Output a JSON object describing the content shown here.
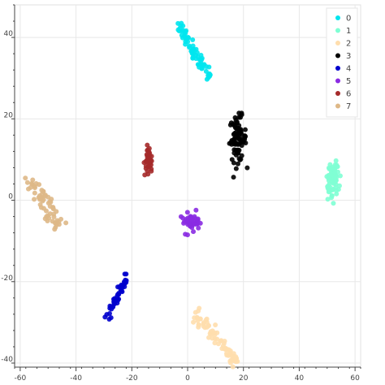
{
  "chart_data": {
    "type": "scatter",
    "title": "",
    "xlabel": "",
    "ylabel": "",
    "xlim": [
      -62,
      62
    ],
    "ylim": [
      -41,
      48
    ],
    "xticks": [
      -60,
      -40,
      -20,
      0,
      20,
      40,
      60
    ],
    "yticks": [
      -40,
      -20,
      0,
      20,
      40
    ],
    "xtick_labels": [
      "-60",
      "-40",
      "-20",
      "0",
      "20",
      "40",
      "60"
    ],
    "ytick_labels": [
      "-40",
      "-20",
      "0",
      "20",
      "40"
    ],
    "grid": true,
    "legend_position": "top-right",
    "series": [
      {
        "name": "0",
        "color": "#00e5ee",
        "shape": "line-cluster",
        "from": [
          -4,
          44
        ],
        "to": [
          8,
          30
        ],
        "spread": 0.8,
        "n": 70
      },
      {
        "name": "1",
        "color": "#7fffd4",
        "shape": "ellipse",
        "center": [
          52,
          5
        ],
        "radius": [
          2.5,
          5
        ],
        "n": 70
      },
      {
        "name": "2",
        "color": "#ffdead",
        "shape": "line-cluster",
        "from": [
          3,
          -28
        ],
        "to": [
          18,
          -40
        ],
        "spread": 0.8,
        "n": 70
      },
      {
        "name": "3",
        "color": "#000000",
        "shape": "ellipse",
        "center": [
          18,
          15
        ],
        "radius": [
          3,
          5.5
        ],
        "n": 80
      },
      {
        "name": "4",
        "color": "#0000cd",
        "shape": "line-cluster",
        "from": [
          -29,
          -29
        ],
        "to": [
          -22,
          -19
        ],
        "spread": 0.7,
        "n": 45
      },
      {
        "name": "5",
        "color": "#8a2be2",
        "shape": "ellipse",
        "center": [
          1,
          -5.5
        ],
        "radius": [
          3.5,
          2
        ],
        "n": 45
      },
      {
        "name": "6",
        "color": "#a52a2a",
        "shape": "ellipse",
        "center": [
          -14,
          10
        ],
        "radius": [
          1.5,
          3
        ],
        "n": 40
      },
      {
        "name": "7",
        "color": "#deb887",
        "shape": "line-cluster",
        "from": [
          -56,
          4
        ],
        "to": [
          -46,
          -6
        ],
        "spread": 1.3,
        "n": 60
      }
    ]
  }
}
